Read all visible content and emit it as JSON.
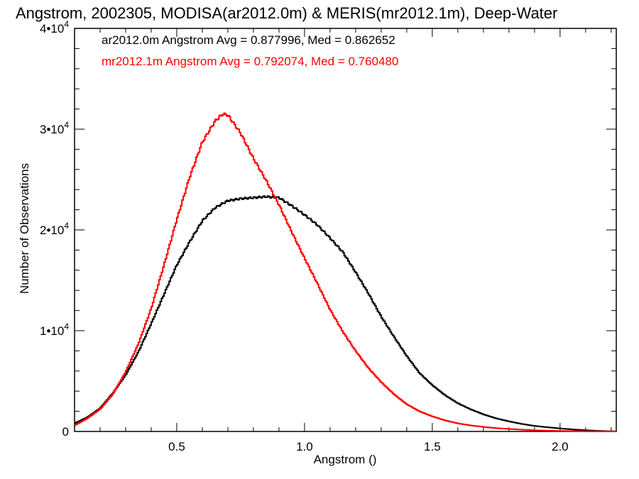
{
  "chart_data": {
    "type": "line",
    "title": "Angstrom, 2002305, MODISA(ar2012.0m) & MERIS(mr2012.1m), Deep-Water",
    "xlabel": "Angstrom ()",
    "ylabel": "Number of Observations",
    "xlim": [
      0.1,
      2.22
    ],
    "ylim": [
      0,
      40000
    ],
    "x_ticks": [
      0.5,
      1.0,
      1.5,
      2.0
    ],
    "x_tick_labels": [
      "0.5",
      "1.0",
      "1.5",
      "2.0"
    ],
    "y_ticks": [
      0,
      10000,
      20000,
      30000,
      40000
    ],
    "y_tick_labels": [
      {
        "base": "0",
        "exp": ""
      },
      {
        "base": "1•10",
        "exp": "4"
      },
      {
        "base": "2•10",
        "exp": "4"
      },
      {
        "base": "3•10",
        "exp": "4"
      },
      {
        "base": "4•10",
        "exp": "4"
      }
    ],
    "grid": false,
    "step": true,
    "annotations": [
      {
        "text": "ar2012.0m Angstrom Avg = 0.877996, Med = 0.862652",
        "color": "#000000"
      },
      {
        "text": "mr2012.1m Angstrom Avg = 0.792074, Med = 0.760480",
        "color": "#ff0000"
      }
    ],
    "series": [
      {
        "color": "#000000",
        "points": [
          [
            0.1,
            800
          ],
          [
            0.15,
            1400
          ],
          [
            0.2,
            2300
          ],
          [
            0.25,
            3800
          ],
          [
            0.3,
            5600
          ],
          [
            0.35,
            7900
          ],
          [
            0.4,
            10700
          ],
          [
            0.45,
            13600
          ],
          [
            0.5,
            16500
          ],
          [
            0.55,
            18800
          ],
          [
            0.6,
            20900
          ],
          [
            0.65,
            22200
          ],
          [
            0.7,
            22900
          ],
          [
            0.75,
            23100
          ],
          [
            0.8,
            23200
          ],
          [
            0.85,
            23300
          ],
          [
            0.9,
            23200
          ],
          [
            0.95,
            22400
          ],
          [
            1.0,
            21500
          ],
          [
            1.05,
            20500
          ],
          [
            1.1,
            19200
          ],
          [
            1.15,
            17800
          ],
          [
            1.2,
            15800
          ],
          [
            1.25,
            13700
          ],
          [
            1.3,
            11400
          ],
          [
            1.35,
            9400
          ],
          [
            1.4,
            7500
          ],
          [
            1.45,
            5800
          ],
          [
            1.5,
            4600
          ],
          [
            1.55,
            3600
          ],
          [
            1.6,
            2800
          ],
          [
            1.65,
            2200
          ],
          [
            1.7,
            1700
          ],
          [
            1.75,
            1300
          ],
          [
            1.8,
            1000
          ],
          [
            1.85,
            750
          ],
          [
            1.9,
            550
          ],
          [
            1.95,
            420
          ],
          [
            2.0,
            300
          ],
          [
            2.05,
            200
          ],
          [
            2.1,
            120
          ],
          [
            2.15,
            60
          ],
          [
            2.2,
            20
          ]
        ]
      },
      {
        "color": "#ff0000",
        "points": [
          [
            0.1,
            600
          ],
          [
            0.15,
            1300
          ],
          [
            0.2,
            2200
          ],
          [
            0.25,
            3700
          ],
          [
            0.3,
            5900
          ],
          [
            0.35,
            8700
          ],
          [
            0.4,
            12200
          ],
          [
            0.45,
            16500
          ],
          [
            0.5,
            21000
          ],
          [
            0.55,
            25200
          ],
          [
            0.6,
            28700
          ],
          [
            0.65,
            30800
          ],
          [
            0.68,
            31500
          ],
          [
            0.7,
            31400
          ],
          [
            0.75,
            29600
          ],
          [
            0.8,
            27100
          ],
          [
            0.85,
            24900
          ],
          [
            0.9,
            22500
          ],
          [
            0.95,
            19800
          ],
          [
            1.0,
            17200
          ],
          [
            1.05,
            14700
          ],
          [
            1.1,
            12100
          ],
          [
            1.15,
            9900
          ],
          [
            1.2,
            8000
          ],
          [
            1.25,
            6300
          ],
          [
            1.3,
            4900
          ],
          [
            1.35,
            3700
          ],
          [
            1.4,
            2700
          ],
          [
            1.45,
            2000
          ],
          [
            1.5,
            1500
          ],
          [
            1.55,
            1100
          ],
          [
            1.6,
            800
          ],
          [
            1.65,
            600
          ],
          [
            1.7,
            450
          ],
          [
            1.75,
            330
          ],
          [
            1.8,
            250
          ],
          [
            1.85,
            180
          ],
          [
            1.9,
            120
          ],
          [
            1.95,
            80
          ],
          [
            2.0,
            50
          ],
          [
            2.1,
            20
          ],
          [
            2.2,
            5
          ]
        ]
      }
    ]
  }
}
